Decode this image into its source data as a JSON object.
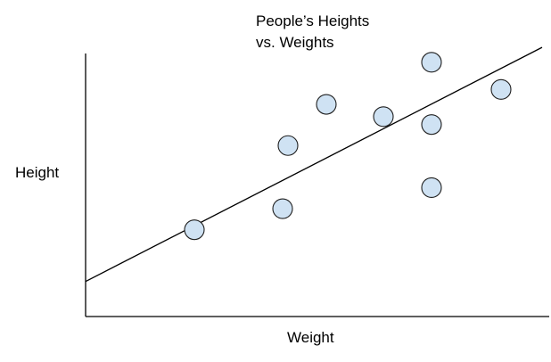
{
  "chart_data": {
    "type": "scatter",
    "title_lines": [
      "People’s Heights",
      "vs. Weights"
    ],
    "xlabel": "Weight",
    "ylabel": "Height",
    "xlim": [
      0,
      520
    ],
    "ylim": [
      0,
      300
    ],
    "grid": false,
    "legend": "none",
    "points": [
      {
        "x": 122,
        "y": 99
      },
      {
        "x": 221,
        "y": 123
      },
      {
        "x": 227,
        "y": 195
      },
      {
        "x": 270,
        "y": 242
      },
      {
        "x": 334,
        "y": 228
      },
      {
        "x": 388,
        "y": 147
      },
      {
        "x": 388,
        "y": 219
      },
      {
        "x": 388,
        "y": 290
      },
      {
        "x": 466,
        "y": 259
      }
    ],
    "trendline": {
      "x": [
        0,
        512
      ],
      "y": [
        40,
        307
      ]
    },
    "colors": {
      "point_fill": "#cfe2f3",
      "point_stroke": "#1f1f1f",
      "line": "#000000",
      "axis": "#000000"
    }
  }
}
